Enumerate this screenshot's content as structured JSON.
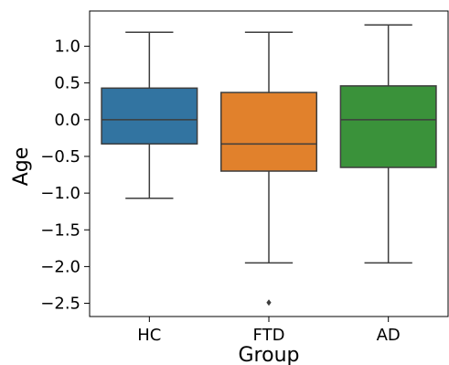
{
  "chart_data": {
    "type": "box",
    "xlabel": "Group",
    "ylabel": "Age",
    "ylim": [
      -2.68,
      1.48
    ],
    "yticks": [
      "1.0",
      "0.5",
      "0.0",
      "−0.5",
      "−1.0",
      "−1.5",
      "−2.0",
      "−2.5"
    ],
    "ytick_values": [
      1.0,
      0.5,
      0.0,
      -0.5,
      -1.0,
      -1.5,
      -2.0,
      -2.5
    ],
    "categories": [
      "HC",
      "FTD",
      "AD"
    ],
    "boxes": [
      {
        "category": "HC",
        "whisker_low": -1.07,
        "q1": -0.33,
        "median": 0.0,
        "q3": 0.43,
        "whisker_high": 1.19,
        "outliers": [],
        "color": "#3274a1"
      },
      {
        "category": "FTD",
        "whisker_low": -1.95,
        "q1": -0.7,
        "median": -0.33,
        "q3": 0.37,
        "whisker_high": 1.19,
        "outliers": [
          -2.49
        ],
        "color": "#e1812c"
      },
      {
        "category": "AD",
        "whisker_low": -1.95,
        "q1": -0.65,
        "median": 0.0,
        "q3": 0.46,
        "whisker_high": 1.29,
        "outliers": [],
        "color": "#3a923a"
      }
    ],
    "grid": false
  }
}
